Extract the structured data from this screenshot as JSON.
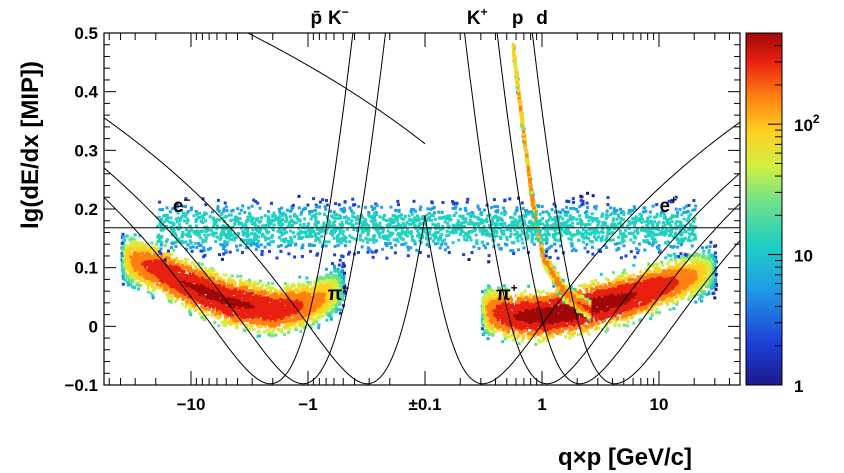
{
  "chart_data": {
    "type": "heatmap",
    "title": "",
    "xlabel": "q×p [GeV/c]",
    "ylabel": "lg(dE/dx [MIP])",
    "x_scale": "signed-log",
    "x_ticks": [
      {
        "value": -10,
        "label": "−10"
      },
      {
        "value": -1,
        "label": "−1"
      },
      {
        "value": 0.1,
        "label": "±0.1"
      },
      {
        "value": 1,
        "label": "1"
      },
      {
        "value": 10,
        "label": "10"
      }
    ],
    "xlim": [
      -50,
      50
    ],
    "ylim": [
      -0.1,
      0.5
    ],
    "y_ticks": [
      {
        "value": -0.1,
        "label": "−0.1"
      },
      {
        "value": 0,
        "label": "0"
      },
      {
        "value": 0.1,
        "label": "0.1"
      },
      {
        "value": 0.2,
        "label": "0.2"
      },
      {
        "value": 0.3,
        "label": "0.3"
      },
      {
        "value": 0.4,
        "label": "0.4"
      },
      {
        "value": 0.5,
        "label": "0.5"
      }
    ],
    "colorbar": {
      "scale": "log",
      "range": [
        1,
        500
      ],
      "ticks": [
        {
          "value": 1,
          "label": "1"
        },
        {
          "value": 10,
          "label": "10"
        },
        {
          "value": 100,
          "label": "10",
          "sup": "2"
        }
      ],
      "colors": [
        "#1a1a8c",
        "#1e40d8",
        "#1ea0e6",
        "#20d0c0",
        "#6ee08c",
        "#d0f040",
        "#ffd020",
        "#ff8010",
        "#e82010",
        "#a00808"
      ]
    },
    "bands": [
      {
        "name": "pi-",
        "x": [
          -40,
          -20,
          -10,
          -5,
          -2,
          -1,
          -0.5
        ],
        "y": [
          0.12,
          0.1,
          0.07,
          0.045,
          0.03,
          0.04,
          0.07
        ],
        "peak": 400
      },
      {
        "name": "pi+",
        "x": [
          0.3,
          0.6,
          1,
          2,
          5,
          10,
          30
        ],
        "y": [
          0.03,
          0.02,
          0.02,
          0.03,
          0.05,
          0.07,
          0.1
        ],
        "peak": 500
      },
      {
        "name": "proton",
        "x": [
          0.55,
          0.65,
          0.8,
          1,
          1.5,
          2.5
        ],
        "y": [
          0.48,
          0.36,
          0.22,
          0.12,
          0.06,
          0.03
        ],
        "peak": 200
      },
      {
        "name": "electrons",
        "x": [
          -20,
          -5,
          -1,
          1,
          5,
          20
        ],
        "y": [
          0.17,
          0.17,
          0.17,
          0.17,
          0.17,
          0.17
        ],
        "peak": 20
      }
    ],
    "curves": [
      {
        "name": "e",
        "label": "e",
        "sup": "−",
        "label_pos": "left",
        "label_x": -12,
        "label_y": 0.195
      },
      {
        "name": "e",
        "label": "e",
        "sup": "+",
        "label_pos": "right",
        "label_x": 12,
        "label_y": 0.195
      },
      {
        "name": "pi-",
        "label": "π",
        "sup": "−",
        "label_x": -0.55,
        "label_y": 0.045
      },
      {
        "name": "pi+",
        "label": "π",
        "sup": "+",
        "label_x": 0.5,
        "label_y": 0.045
      },
      {
        "name": "pbar",
        "label": "p̄",
        "sup": "",
        "top_label": true,
        "label_x": -0.85
      },
      {
        "name": "K-",
        "label": "K",
        "sup": "−",
        "top_label": true,
        "label_x": -0.55
      },
      {
        "name": "K+",
        "label": "K",
        "sup": "+",
        "top_label": true,
        "label_x": 0.28
      },
      {
        "name": "p",
        "label": "p",
        "sup": "",
        "top_label": true,
        "label_x": 0.62
      },
      {
        "name": "d",
        "label": "d",
        "sup": "",
        "top_label": true,
        "label_x": 1.0
      }
    ]
  }
}
